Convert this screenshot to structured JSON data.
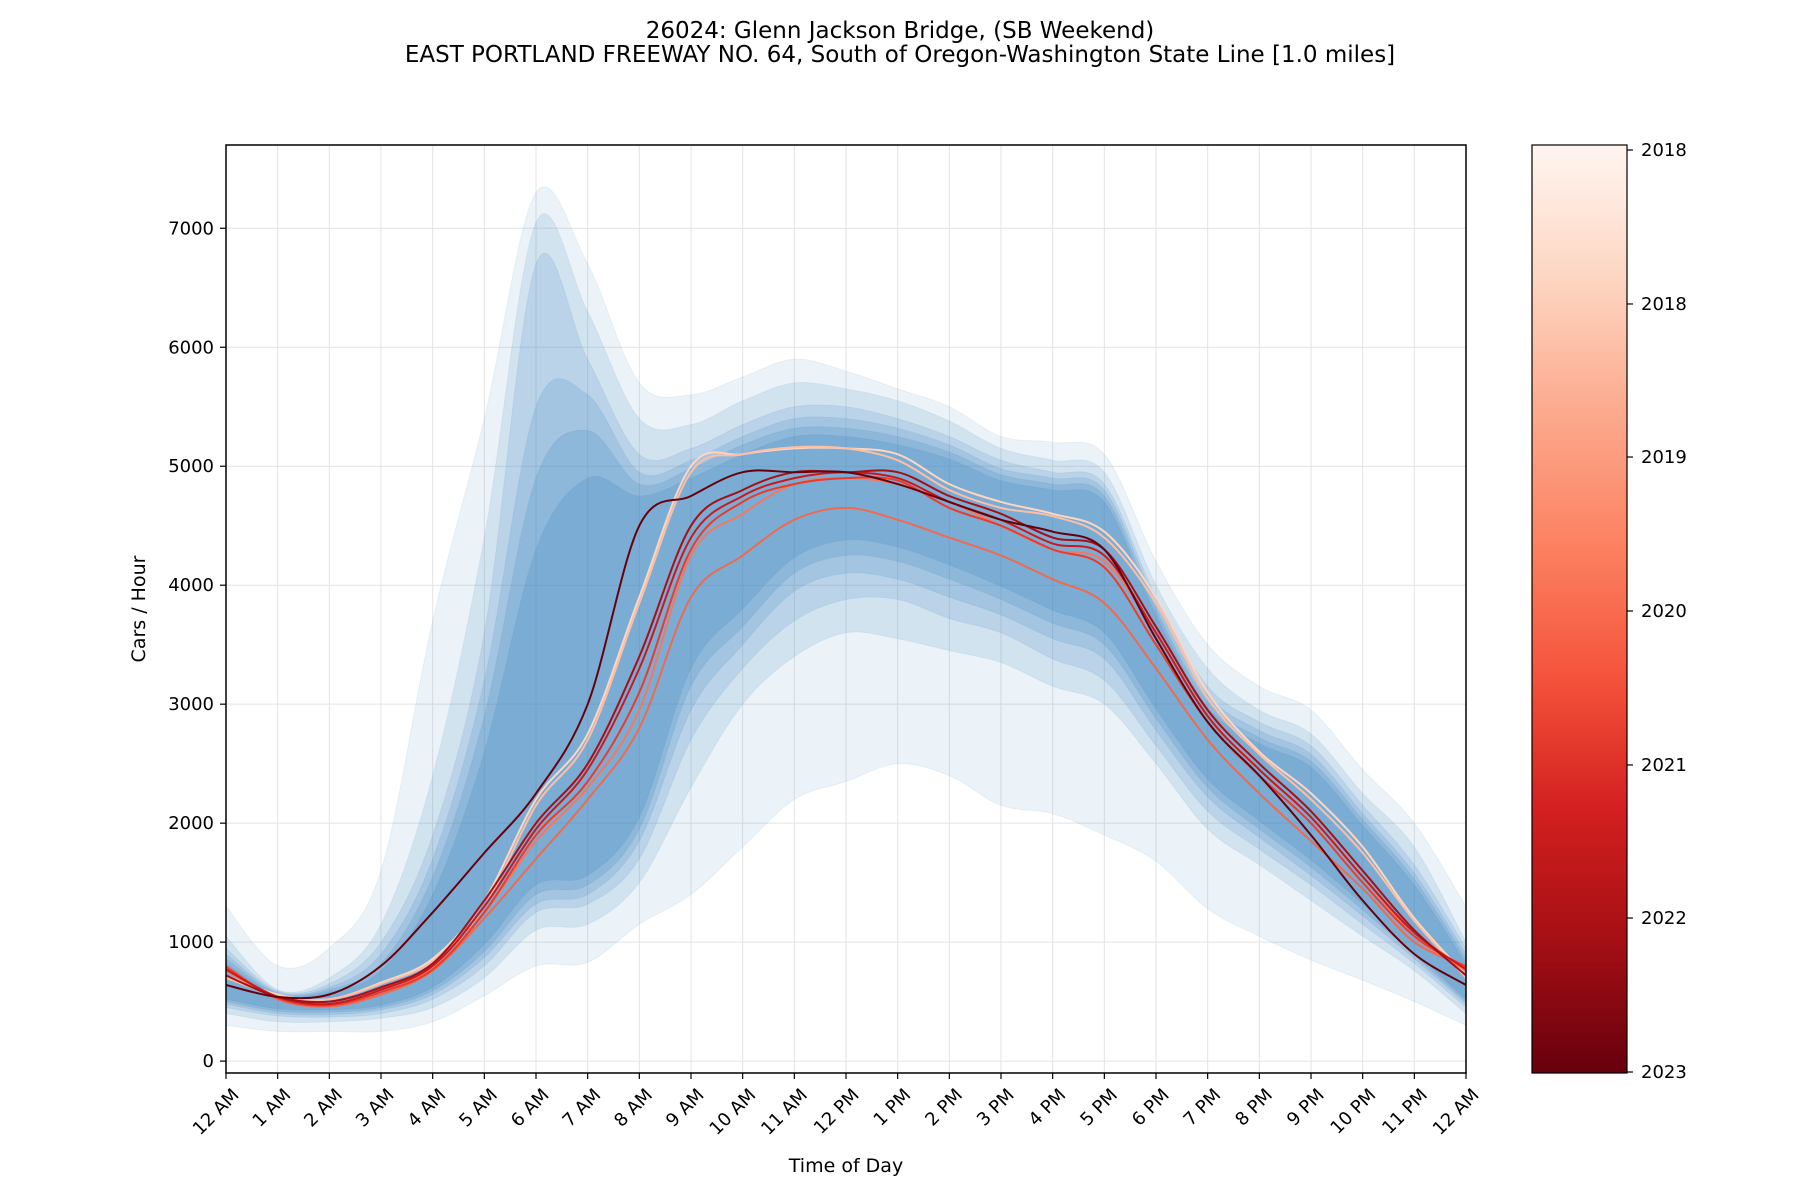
{
  "chart_data": {
    "type": "area",
    "title": "26024: Glenn Jackson Bridge, (SB Weekend)",
    "subtitle": "EAST PORTLAND FREEWAY NO. 64, South of Oregon-Washington State Line [1.0 miles]",
    "xlabel": "Time of Day",
    "ylabel": "Cars / Hour",
    "x_hours": [
      0,
      1,
      2,
      3,
      4,
      5,
      6,
      7,
      8,
      9,
      10,
      11,
      12,
      13,
      14,
      15,
      16,
      17,
      18,
      19,
      20,
      21,
      22,
      23,
      24
    ],
    "x_tick_labels": [
      "12 AM",
      "1 AM",
      "2 AM",
      "3 AM",
      "4 AM",
      "5 AM",
      "6 AM",
      "7 AM",
      "8 AM",
      "9 AM",
      "10 AM",
      "11 AM",
      "12 PM",
      "1 PM",
      "2 PM",
      "3 PM",
      "4 PM",
      "5 PM",
      "6 PM",
      "7 PM",
      "8 PM",
      "9 PM",
      "10 PM",
      "11 PM",
      "12 AM"
    ],
    "xlim": [
      0,
      24
    ],
    "ylim": [
      -100,
      7700
    ],
    "y_ticks": [
      0,
      1000,
      2000,
      3000,
      4000,
      5000,
      6000,
      7000
    ],
    "grid": true,
    "bands": [
      {
        "upper": [
          1300,
          800,
          950,
          1600,
          3700,
          5400,
          7300,
          6700,
          5700,
          5600,
          5750,
          5900,
          5800,
          5650,
          5500,
          5250,
          5200,
          5100,
          4200,
          3500,
          3150,
          2950,
          2450,
          2000,
          1300
        ],
        "lower": [
          300,
          250,
          250,
          250,
          330,
          550,
          800,
          830,
          1150,
          1400,
          1800,
          2200,
          2350,
          2500,
          2400,
          2150,
          2080,
          1900,
          1680,
          1280,
          1050,
          850,
          680,
          500,
          300
        ]
      },
      {
        "upper": [
          1050,
          600,
          700,
          1150,
          2400,
          4400,
          7050,
          6300,
          5400,
          5350,
          5550,
          5700,
          5650,
          5550,
          5380,
          5150,
          5050,
          4950,
          4000,
          3300,
          2950,
          2750,
          2250,
          1800,
          1000
        ],
        "lower": [
          400,
          330,
          330,
          360,
          450,
          700,
          1100,
          1150,
          1500,
          2300,
          3000,
          3400,
          3600,
          3550,
          3450,
          3350,
          3150,
          3000,
          2500,
          1950,
          1650,
          1350,
          1050,
          760,
          400
        ]
      },
      {
        "upper": [
          950,
          590,
          650,
          1000,
          1900,
          3600,
          6700,
          5900,
          5100,
          5150,
          5350,
          5500,
          5500,
          5400,
          5250,
          5050,
          4950,
          4850,
          3900,
          3150,
          2850,
          2650,
          2150,
          1650,
          950
        ],
        "lower": [
          450,
          380,
          370,
          400,
          520,
          800,
          1250,
          1320,
          1700,
          2700,
          3300,
          3700,
          3880,
          3880,
          3720,
          3600,
          3380,
          3200,
          2650,
          2100,
          1780,
          1480,
          1150,
          820,
          450
        ]
      },
      {
        "upper": [
          900,
          580,
          620,
          900,
          1700,
          3200,
          5500,
          5600,
          4950,
          5050,
          5250,
          5400,
          5400,
          5320,
          5180,
          4980,
          4900,
          4800,
          3850,
          3080,
          2780,
          2580,
          2080,
          1580,
          900
        ],
        "lower": [
          480,
          400,
          390,
          430,
          560,
          870,
          1320,
          1400,
          1850,
          2950,
          3500,
          3950,
          4100,
          4050,
          3900,
          3750,
          3550,
          3380,
          2780,
          2220,
          1880,
          1560,
          1220,
          860,
          480
        ]
      },
      {
        "upper": [
          860,
          570,
          600,
          820,
          1550,
          2900,
          4900,
          5300,
          4850,
          4980,
          5180,
          5320,
          5320,
          5250,
          5120,
          4930,
          4850,
          4750,
          3800,
          3020,
          2720,
          2520,
          2030,
          1530,
          860
        ],
        "lower": [
          500,
          420,
          410,
          450,
          590,
          920,
          1400,
          1480,
          1950,
          3150,
          3650,
          4100,
          4250,
          4200,
          4050,
          3880,
          3680,
          3500,
          2880,
          2300,
          1950,
          1630,
          1270,
          890,
          500
        ]
      },
      {
        "upper": [
          820,
          560,
          580,
          760,
          1400,
          2600,
          4300,
          4900,
          4750,
          4900,
          5100,
          5250,
          5250,
          5180,
          5060,
          4880,
          4800,
          4700,
          3750,
          2970,
          2670,
          2470,
          1980,
          1480,
          820
        ],
        "lower": [
          520,
          440,
          430,
          470,
          620,
          980,
          1480,
          1560,
          2050,
          3300,
          3800,
          4230,
          4380,
          4320,
          4170,
          3990,
          3790,
          3600,
          2960,
          2370,
          2020,
          1690,
          1320,
          920,
          520
        ]
      }
    ],
    "series": [
      {
        "color": "#fdd6c2",
        "values": [
          720,
          560,
          520,
          660,
          860,
          1350,
          2200,
          2750,
          3900,
          5000,
          5100,
          5150,
          5150,
          5100,
          4850,
          4700,
          4600,
          4450,
          3900,
          3100,
          2600,
          2250,
          1800,
          1200,
          720
        ]
      },
      {
        "color": "#fcbfa6",
        "values": [
          700,
          550,
          520,
          650,
          840,
          1300,
          2150,
          2700,
          3850,
          4950,
          5100,
          5160,
          5150,
          5050,
          4800,
          4650,
          4580,
          4400,
          3850,
          3050,
          2580,
          2200,
          1750,
          1180,
          700
        ]
      },
      {
        "color": "#f4785f",
        "values": [
          760,
          530,
          480,
          600,
          780,
          1250,
          1850,
          2300,
          2950,
          4250,
          4600,
          4850,
          4900,
          4850,
          4700,
          4500,
          4300,
          4200,
          3600,
          2900,
          2450,
          2050,
          1550,
          1050,
          760
        ]
      },
      {
        "color": "#ee6a50",
        "values": [
          800,
          520,
          460,
          560,
          760,
          1200,
          1700,
          2200,
          2800,
          3900,
          4250,
          4550,
          4650,
          4550,
          4400,
          4250,
          4050,
          3850,
          3300,
          2700,
          2250,
          1850,
          1450,
          1000,
          800
        ]
      },
      {
        "color": "#ea3b2c",
        "values": [
          790,
          530,
          470,
          580,
          770,
          1250,
          1900,
          2350,
          3100,
          4300,
          4700,
          4850,
          4900,
          4880,
          4650,
          4500,
          4300,
          4150,
          3500,
          2850,
          2400,
          2000,
          1500,
          1050,
          790
        ]
      },
      {
        "color": "#cb181d",
        "values": [
          770,
          540,
          480,
          600,
          800,
          1300,
          1950,
          2450,
          3300,
          4400,
          4750,
          4900,
          4950,
          4900,
          4700,
          4550,
          4350,
          4250,
          3600,
          2900,
          2450,
          2050,
          1550,
          1080,
          770
        ]
      },
      {
        "color": "#a50f15",
        "values": [
          720,
          540,
          500,
          620,
          820,
          1350,
          2000,
          2500,
          3400,
          4500,
          4800,
          4950,
          4950,
          4950,
          4750,
          4600,
          4400,
          4300,
          3650,
          2950,
          2500,
          2100,
          1600,
          1100,
          720
        ]
      },
      {
        "color": "#67000d",
        "values": [
          640,
          540,
          560,
          800,
          1250,
          1750,
          2250,
          3000,
          4500,
          4750,
          4950,
          4950,
          4950,
          4850,
          4700,
          4550,
          4450,
          4300,
          3550,
          2850,
          2400,
          1900,
          1350,
          900,
          640
        ]
      }
    ],
    "colorbar": {
      "label_values": [
        "2018",
        "2018",
        "2019",
        "2020",
        "2021",
        "2022",
        "2023"
      ],
      "label_fractions": [
        0.0,
        0.167,
        0.333,
        0.5,
        0.667,
        0.833,
        1.0
      ],
      "colors": [
        "#fff5f0",
        "#fdd6c2",
        "#fcaa8e",
        "#fc8262",
        "#f5543c",
        "#d42020",
        "#a50f15",
        "#67000d"
      ]
    }
  }
}
